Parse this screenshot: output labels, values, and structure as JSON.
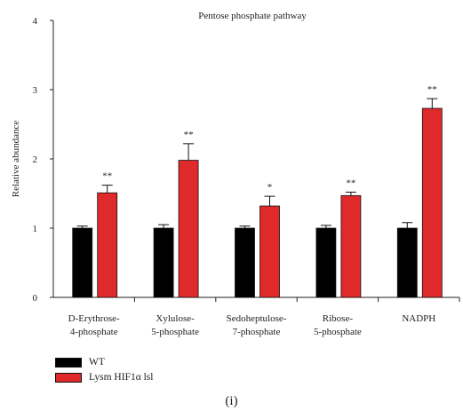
{
  "chart_data": {
    "type": "bar",
    "title": "Pentose phosphate pathway",
    "ylabel": "Relative abundance",
    "xlabel": "",
    "ylim": [
      0,
      4
    ],
    "yticks": [
      "0",
      "1",
      "2",
      "3",
      "4"
    ],
    "categories": [
      [
        "D-Erythrose-",
        "4-phosphate"
      ],
      [
        "Xylulose-",
        "5-phosphate"
      ],
      [
        "Sedoheptulose-",
        "7-phosphate"
      ],
      [
        "Ribose-",
        "5-phosphate"
      ],
      [
        "NADPH"
      ]
    ],
    "series": [
      {
        "name": "WT",
        "color": "#000000",
        "values": [
          1.0,
          1.0,
          1.0,
          1.0,
          1.0
        ],
        "errors": [
          0.03,
          0.05,
          0.03,
          0.04,
          0.08
        ]
      },
      {
        "name": "Lysm HIF1α lsl",
        "color": "#e0292b",
        "values": [
          1.51,
          1.98,
          1.32,
          1.47,
          2.73
        ],
        "errors": [
          0.11,
          0.24,
          0.14,
          0.05,
          0.14
        ]
      }
    ],
    "annotations": [
      "**",
      "**",
      "*",
      "**",
      "**"
    ],
    "grid": false,
    "legend_position": "bottom-left"
  },
  "legend": {
    "wt_label": "WT",
    "lysm_label": "Lysm HIF1α lsl"
  },
  "panel_label": "(i)"
}
